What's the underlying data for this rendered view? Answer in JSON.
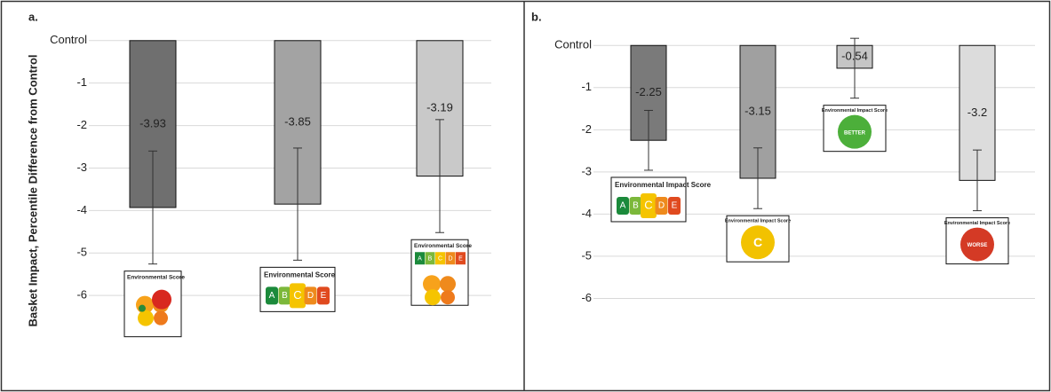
{
  "chart_data": [
    {
      "type": "bar",
      "panel_label": "a.",
      "ylabel": "Basket Impact, Percentile Difference from Control",
      "categories": [
        null,
        null,
        null
      ],
      "values": [
        -3.93,
        -3.85,
        -3.19
      ],
      "errors": [
        1.33,
        1.32,
        1.33
      ],
      "colors": [
        "#6f6f6f",
        "#a3a3a3",
        "#c9c9c9"
      ],
      "ylim": [
        -7,
        0.1
      ],
      "yticks": [
        {
          "value": 0,
          "label": "Control"
        },
        -1,
        -2,
        -3,
        -4,
        -5,
        -6
      ],
      "grid": true,
      "labels": [
        {
          "kind": "flower",
          "title": "Environmental Score"
        },
        {
          "kind": "grades",
          "title": "Environmental Score",
          "grades": [
            "A",
            "B",
            "C",
            "D",
            "E"
          ],
          "selected": "C"
        },
        {
          "kind": "flower-grades",
          "title": "Environmental Score",
          "grades": [
            "A",
            "B",
            "C",
            "D",
            "E"
          ],
          "selected": "C"
        }
      ]
    },
    {
      "type": "bar",
      "panel_label": "b.",
      "categories": [
        null,
        null,
        null,
        null
      ],
      "values": [
        -2.25,
        -3.15,
        -0.54,
        -3.2
      ],
      "errors": [
        0.71,
        0.72,
        0.71,
        0.72
      ],
      "colors": [
        "#7a7a7a",
        "#a0a0a0",
        "#c5c5c5",
        "#dcdcdc"
      ],
      "ylim": [
        -7,
        0.3
      ],
      "yticks": [
        {
          "value": 0,
          "label": "Control"
        },
        -1,
        -2,
        -3,
        -4,
        -5,
        -6
      ],
      "grid": true,
      "labels": [
        {
          "kind": "grades",
          "title": "Environmental Impact Score",
          "grades": [
            "A",
            "B",
            "C",
            "D",
            "E"
          ],
          "selected": "C"
        },
        {
          "kind": "circle",
          "title": "Environmental Impact Score",
          "text": "C",
          "color": "#f2c200"
        },
        {
          "kind": "circle",
          "title": "Environmental Impact Score",
          "text": "BETTER",
          "color": "#4caf3a"
        },
        {
          "kind": "circle",
          "title": "Environmental Impact Score",
          "text": "WORSE",
          "color": "#d43a25"
        }
      ]
    }
  ]
}
